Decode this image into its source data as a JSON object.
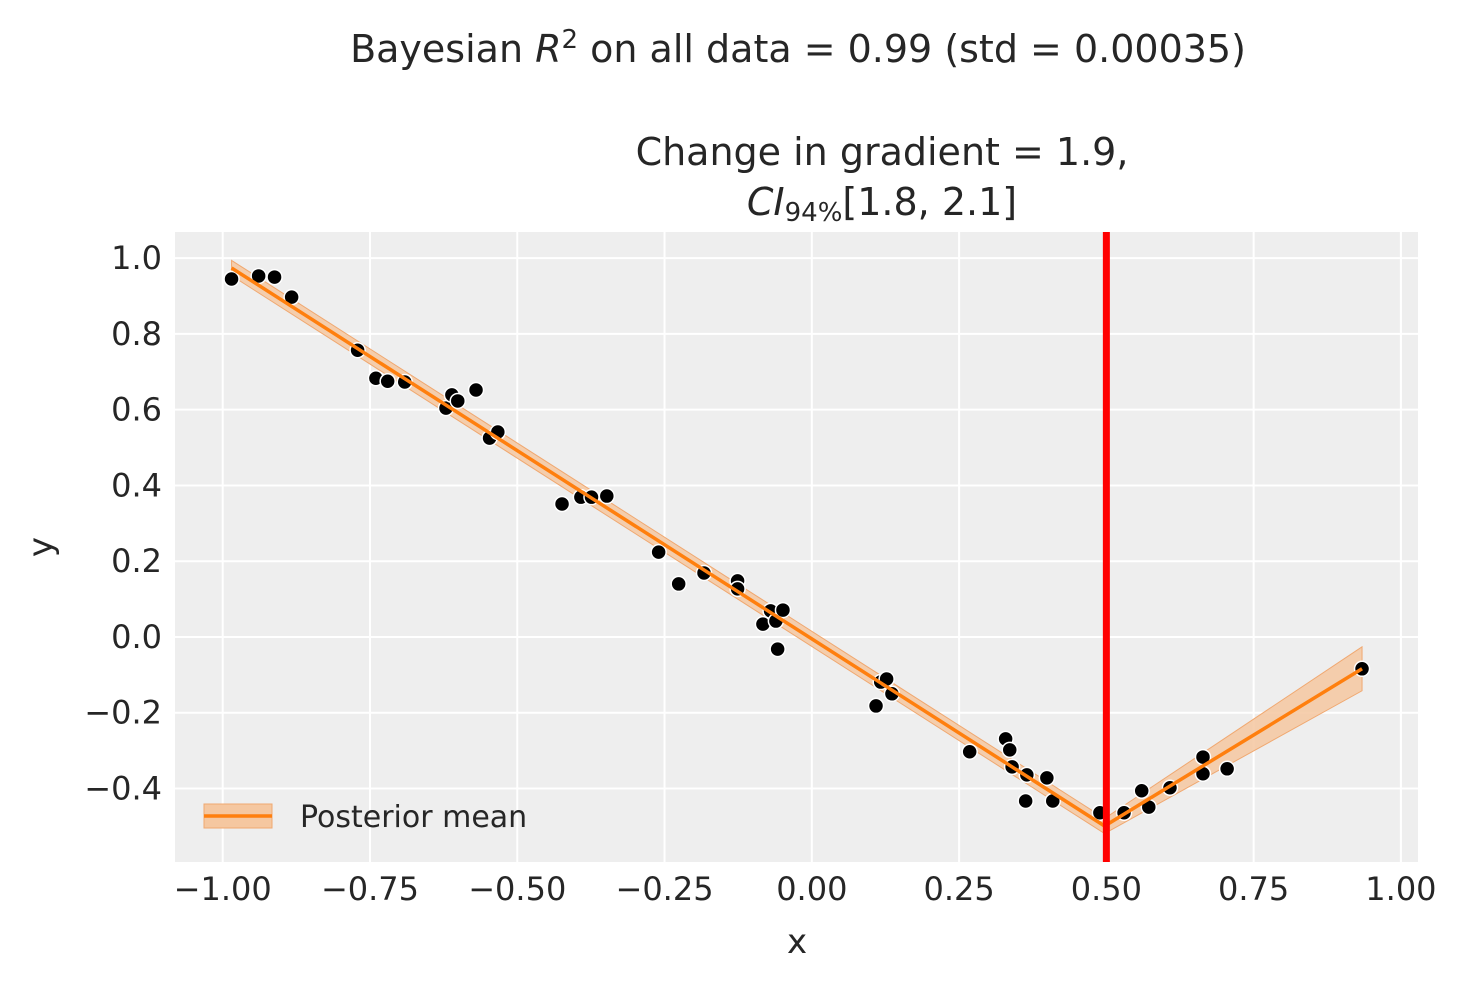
{
  "chart_data": {
    "type": "scatter",
    "suptitle": {
      "prefix": "Bayesian ",
      "var": "R",
      "sup": "2",
      "suffix": " on all data = 0.99 (std = 0.00035)"
    },
    "title": {
      "line1": "Change in gradient = 1.9,",
      "ci_var": "CI",
      "ci_sub": "94%",
      "ci_range": "[1.8, 2.1]"
    },
    "xlabel": "x",
    "ylabel": "y",
    "xlim": [
      -1.081,
      1.029
    ],
    "ylim": [
      -0.594,
      1.069
    ],
    "xticks": [
      -1.0,
      -0.75,
      -0.5,
      -0.25,
      0.0,
      0.25,
      0.5,
      0.75,
      1.0
    ],
    "xtick_labels": [
      "−1.00",
      "−0.75",
      "−0.50",
      "−0.25",
      "0.00",
      "0.25",
      "0.50",
      "0.75",
      "1.00"
    ],
    "yticks": [
      -0.4,
      -0.2,
      0.0,
      0.2,
      0.4,
      0.6,
      0.8,
      1.0
    ],
    "ytick_labels": [
      "−0.4",
      "−0.2",
      "0.0",
      "0.2",
      "0.4",
      "0.6",
      "0.8",
      "1.0"
    ],
    "grid": true,
    "background": "#eeeeee",
    "legend": {
      "placement": "lower-left",
      "entries": [
        "Posterior mean"
      ]
    },
    "colors": {
      "points": "#000000",
      "line": "#ff7f0e",
      "band": "#f5c7a0",
      "changepoint": "#ff0000"
    },
    "changepoint_x": 0.5,
    "points": [
      [
        -0.985,
        0.945
      ],
      [
        -0.939,
        0.953
      ],
      [
        -0.912,
        0.95
      ],
      [
        -0.883,
        0.897
      ],
      [
        -0.771,
        0.757
      ],
      [
        -0.74,
        0.683
      ],
      [
        -0.72,
        0.675
      ],
      [
        -0.691,
        0.673
      ],
      [
        -0.621,
        0.604
      ],
      [
        -0.611,
        0.639
      ],
      [
        -0.601,
        0.623
      ],
      [
        -0.57,
        0.652
      ],
      [
        -0.547,
        0.525
      ],
      [
        -0.533,
        0.541
      ],
      [
        -0.424,
        0.351
      ],
      [
        -0.392,
        0.369
      ],
      [
        -0.374,
        0.369
      ],
      [
        -0.348,
        0.372
      ],
      [
        -0.26,
        0.224
      ],
      [
        -0.226,
        0.14
      ],
      [
        -0.183,
        0.169
      ],
      [
        -0.126,
        0.148
      ],
      [
        -0.126,
        0.127
      ],
      [
        -0.083,
        0.034
      ],
      [
        -0.07,
        0.069
      ],
      [
        -0.061,
        0.042
      ],
      [
        -0.049,
        0.071
      ],
      [
        -0.058,
        -0.032
      ],
      [
        0.109,
        -0.182
      ],
      [
        0.117,
        -0.119
      ],
      [
        0.127,
        -0.111
      ],
      [
        0.136,
        -0.15
      ],
      [
        0.268,
        -0.303
      ],
      [
        0.329,
        -0.269
      ],
      [
        0.336,
        -0.298
      ],
      [
        0.34,
        -0.343
      ],
      [
        0.365,
        -0.364
      ],
      [
        0.363,
        -0.433
      ],
      [
        0.399,
        -0.372
      ],
      [
        0.409,
        -0.433
      ],
      [
        0.489,
        -0.464
      ],
      [
        0.53,
        -0.464
      ],
      [
        0.56,
        -0.406
      ],
      [
        0.572,
        -0.449
      ],
      [
        0.608,
        -0.398
      ],
      [
        0.664,
        -0.317
      ],
      [
        0.664,
        -0.361
      ],
      [
        0.705,
        -0.348
      ],
      [
        0.934,
        -0.084
      ]
    ],
    "posterior_mean": {
      "x": [
        -0.985,
        0.497,
        0.934
      ],
      "y": [
        0.974,
        -0.499,
        -0.084
      ]
    },
    "band_halfwidth": {
      "x": [
        -0.985,
        0.497,
        0.934
      ],
      "w": [
        0.02,
        0.02,
        0.058
      ]
    }
  }
}
